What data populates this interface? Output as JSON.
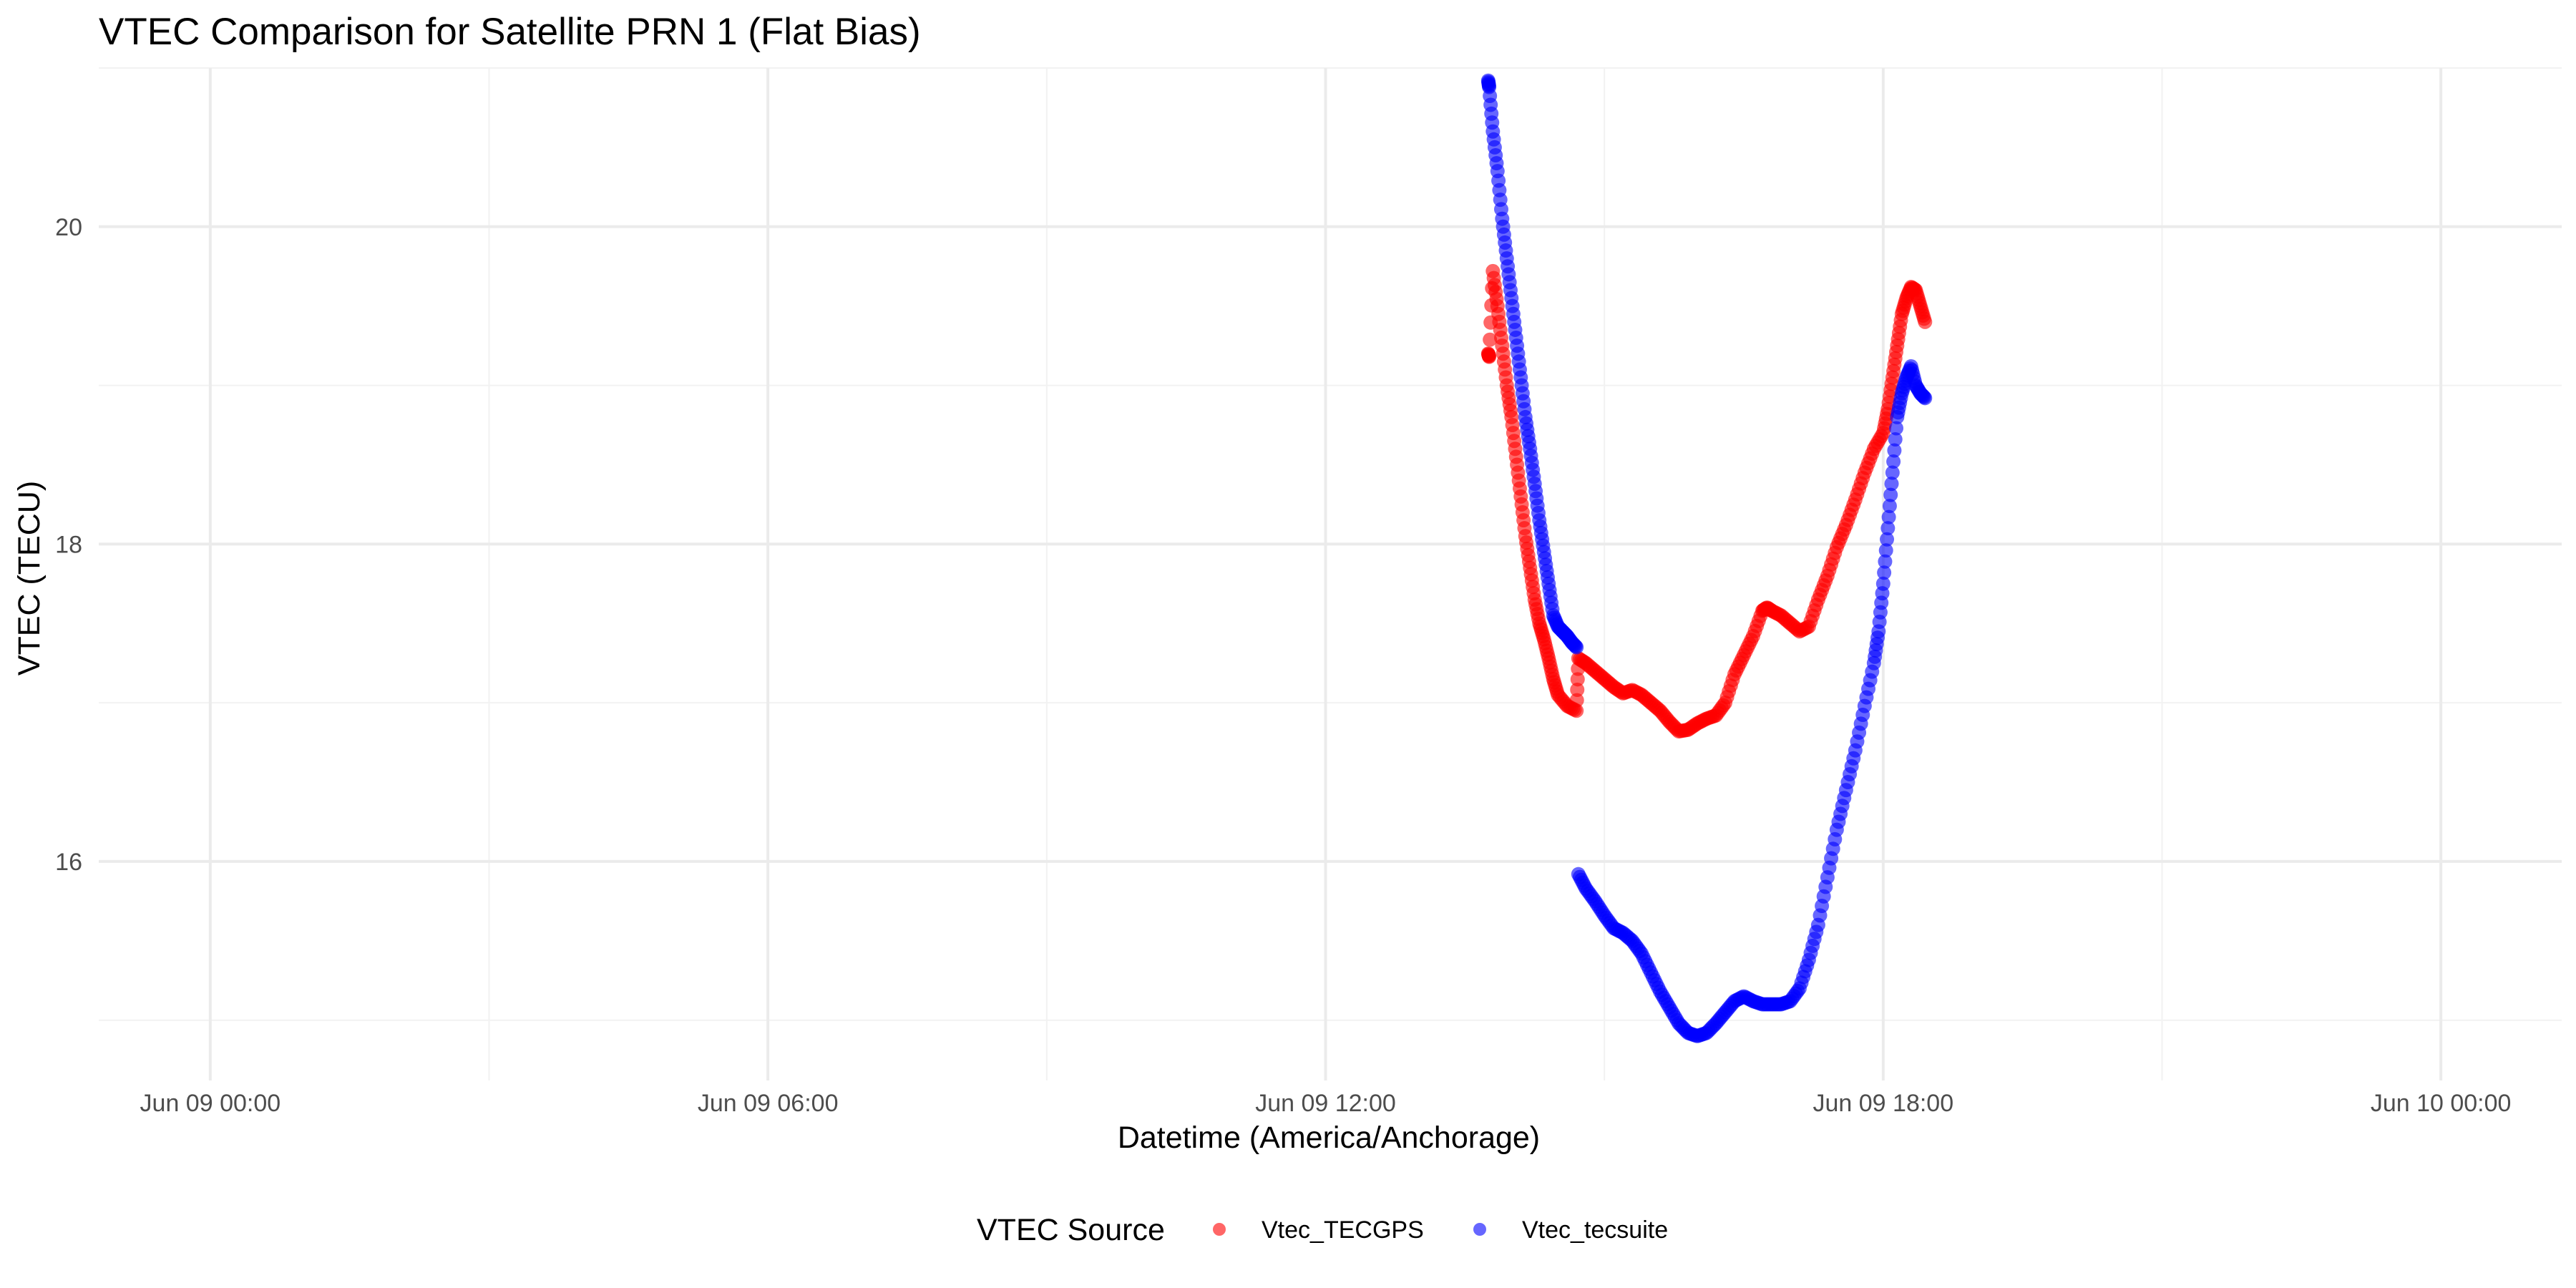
{
  "chart_data": {
    "type": "scatter",
    "title": "VTEC Comparison for Satellite PRN 1 (Flat Bias)",
    "xlabel": "Datetime (America/Anchorage)",
    "ylabel": "VTEC (TECU)",
    "xlim_hours": [
      -1.2,
      25.3
    ],
    "ylim": [
      14.62,
      21.0
    ],
    "x_ticks": [
      {
        "hour": 0,
        "label": "Jun 09 00:00"
      },
      {
        "hour": 6,
        "label": "Jun 09 06:00"
      },
      {
        "hour": 12,
        "label": "Jun 09 12:00"
      },
      {
        "hour": 18,
        "label": "Jun 09 18:00"
      },
      {
        "hour": 24,
        "label": "Jun 10 00:00"
      }
    ],
    "x_minor_hours": [
      3,
      9,
      15,
      21
    ],
    "y_ticks": [
      16,
      18,
      20
    ],
    "y_minor": [
      15,
      17,
      19,
      21
    ],
    "legend": {
      "title": "VTEC Source",
      "position": "bottom"
    },
    "series": [
      {
        "name": "Vtec_TECGPS",
        "color": "#ff0000",
        "points": [
          [
            13.75,
            19.2
          ],
          [
            13.76,
            19.18
          ],
          [
            13.8,
            19.72
          ],
          [
            13.85,
            19.5
          ],
          [
            13.9,
            19.25
          ],
          [
            13.95,
            19.0
          ],
          [
            14.0,
            18.8
          ],
          [
            14.05,
            18.55
          ],
          [
            14.1,
            18.3
          ],
          [
            14.15,
            18.05
          ],
          [
            14.2,
            17.85
          ],
          [
            14.25,
            17.65
          ],
          [
            14.3,
            17.5
          ],
          [
            14.35,
            17.4
          ],
          [
            14.4,
            17.28
          ],
          [
            14.45,
            17.15
          ],
          [
            14.5,
            17.05
          ],
          [
            14.6,
            16.98
          ],
          [
            14.7,
            16.95
          ],
          [
            14.72,
            17.28
          ],
          [
            14.8,
            17.25
          ],
          [
            14.9,
            17.2
          ],
          [
            15.0,
            17.15
          ],
          [
            15.1,
            17.1
          ],
          [
            15.2,
            17.06
          ],
          [
            15.3,
            17.08
          ],
          [
            15.4,
            17.05
          ],
          [
            15.5,
            17.0
          ],
          [
            15.6,
            16.95
          ],
          [
            15.7,
            16.88
          ],
          [
            15.8,
            16.82
          ],
          [
            15.9,
            16.83
          ],
          [
            16.0,
            16.87
          ],
          [
            16.1,
            16.9
          ],
          [
            16.2,
            16.92
          ],
          [
            16.3,
            17.0
          ],
          [
            16.4,
            17.18
          ],
          [
            16.5,
            17.3
          ],
          [
            16.6,
            17.42
          ],
          [
            16.7,
            17.58
          ],
          [
            16.75,
            17.6
          ],
          [
            16.8,
            17.58
          ],
          [
            16.9,
            17.55
          ],
          [
            17.0,
            17.5
          ],
          [
            17.1,
            17.45
          ],
          [
            17.2,
            17.48
          ],
          [
            17.3,
            17.65
          ],
          [
            17.4,
            17.8
          ],
          [
            17.5,
            17.98
          ],
          [
            17.6,
            18.12
          ],
          [
            17.7,
            18.28
          ],
          [
            17.8,
            18.45
          ],
          [
            17.9,
            18.6
          ],
          [
            18.0,
            18.7
          ],
          [
            18.05,
            18.85
          ],
          [
            18.1,
            19.05
          ],
          [
            18.15,
            19.25
          ],
          [
            18.2,
            19.45
          ],
          [
            18.25,
            19.55
          ],
          [
            18.3,
            19.62
          ],
          [
            18.35,
            19.6
          ],
          [
            18.4,
            19.5
          ],
          [
            18.45,
            19.4
          ]
        ]
      },
      {
        "name": "Vtec_tecsuite",
        "color": "#0000ff",
        "points": [
          [
            13.75,
            20.92
          ],
          [
            13.76,
            20.88
          ],
          [
            13.8,
            20.6
          ],
          [
            13.85,
            20.35
          ],
          [
            13.9,
            20.05
          ],
          [
            13.95,
            19.8
          ],
          [
            14.0,
            19.55
          ],
          [
            14.05,
            19.3
          ],
          [
            14.1,
            19.05
          ],
          [
            14.15,
            18.8
          ],
          [
            14.2,
            18.6
          ],
          [
            14.25,
            18.38
          ],
          [
            14.3,
            18.15
          ],
          [
            14.35,
            17.95
          ],
          [
            14.4,
            17.75
          ],
          [
            14.45,
            17.55
          ],
          [
            14.5,
            17.48
          ],
          [
            14.55,
            17.45
          ],
          [
            14.6,
            17.42
          ],
          [
            14.65,
            17.38
          ],
          [
            14.7,
            17.35
          ],
          [
            14.72,
            15.92
          ],
          [
            14.8,
            15.83
          ],
          [
            14.9,
            15.75
          ],
          [
            15.0,
            15.66
          ],
          [
            15.1,
            15.58
          ],
          [
            15.2,
            15.55
          ],
          [
            15.3,
            15.5
          ],
          [
            15.4,
            15.42
          ],
          [
            15.5,
            15.3
          ],
          [
            15.6,
            15.18
          ],
          [
            15.7,
            15.08
          ],
          [
            15.8,
            14.98
          ],
          [
            15.9,
            14.92
          ],
          [
            16.0,
            14.9
          ],
          [
            16.1,
            14.92
          ],
          [
            16.2,
            14.98
          ],
          [
            16.3,
            15.05
          ],
          [
            16.4,
            15.12
          ],
          [
            16.5,
            15.15
          ],
          [
            16.6,
            15.12
          ],
          [
            16.7,
            15.1
          ],
          [
            16.8,
            15.1
          ],
          [
            16.9,
            15.1
          ],
          [
            17.0,
            15.12
          ],
          [
            17.1,
            15.2
          ],
          [
            17.2,
            15.38
          ],
          [
            17.3,
            15.6
          ],
          [
            17.4,
            15.9
          ],
          [
            17.5,
            16.2
          ],
          [
            17.6,
            16.45
          ],
          [
            17.7,
            16.7
          ],
          [
            17.8,
            16.98
          ],
          [
            17.9,
            17.25
          ],
          [
            17.95,
            17.45
          ],
          [
            18.0,
            17.75
          ],
          [
            18.05,
            18.1
          ],
          [
            18.1,
            18.45
          ],
          [
            18.15,
            18.8
          ],
          [
            18.2,
            18.95
          ],
          [
            18.25,
            19.05
          ],
          [
            18.3,
            19.12
          ],
          [
            18.35,
            19.0
          ],
          [
            18.4,
            18.95
          ],
          [
            18.45,
            18.92
          ]
        ]
      }
    ]
  }
}
